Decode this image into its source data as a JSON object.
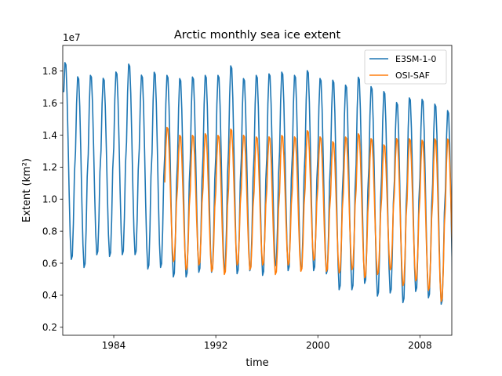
{
  "chart_data": {
    "type": "line",
    "title": "Arctic monthly sea ice extent",
    "xlabel": "time",
    "ylabel": "Extent (km²)",
    "y_offset_label": "1e7",
    "xlim": [
      1980.0,
      2010.5
    ],
    "ylim": [
      1.5,
      19.6
    ],
    "y_ticks": [
      2,
      4,
      6,
      8,
      10,
      12,
      14,
      16,
      18
    ],
    "y_tick_labels": [
      "0.2",
      "0.4",
      "0.6",
      "0.8",
      "1.0",
      "1.2",
      "1.4",
      "1.6",
      "1.8"
    ],
    "x_ticks": [
      1984,
      1992,
      2000,
      2008
    ],
    "x_tick_labels": [
      "1984",
      "1992",
      "2000",
      "2008"
    ],
    "legend_position": "upper-right",
    "grid": false,
    "series": [
      {
        "name": "E3SM-1-0",
        "color": "#1f77b4",
        "start_year": 1980,
        "annual_max": [
          18.7,
          17.8,
          17.9,
          17.7,
          18.1,
          18.6,
          17.9,
          18.1,
          17.9,
          17.7,
          17.8,
          17.9,
          17.9,
          18.5,
          17.7,
          17.9,
          18.0,
          18.1,
          17.9,
          18.2,
          17.7,
          17.6,
          17.3,
          17.8,
          17.2,
          16.9,
          16.2,
          16.5,
          16.4,
          16.1,
          15.7
        ],
        "annual_min": [
          6.1,
          5.6,
          6.4,
          6.3,
          6.4,
          6.4,
          5.5,
          5.6,
          5.0,
          5.0,
          5.3,
          5.3,
          5.4,
          5.2,
          5.4,
          5.1,
          5.7,
          5.4,
          5.4,
          5.4,
          5.2,
          4.2,
          4.2,
          4.6,
          3.8,
          4.0,
          3.4,
          4.1,
          3.7,
          3.3,
          2.4,
          3.5
        ]
      },
      {
        "name": "OSI-SAF",
        "color": "#ff7f0e",
        "start_year": 1988,
        "annual_max": [
          14.6,
          14.1,
          14.1,
          14.2,
          14.1,
          14.5,
          14.1,
          14.0,
          14.0,
          14.1,
          14.0,
          14.4,
          14.0,
          13.7,
          14.0,
          14.2,
          13.9,
          13.5,
          13.9,
          13.9,
          13.8,
          13.9,
          13.9
        ],
        "annual_min": [
          6.0,
          5.5,
          5.8,
          5.4,
          5.2,
          5.8,
          5.5,
          5.8,
          5.2,
          5.8,
          5.4,
          6.1,
          5.4,
          5.3,
          5.5,
          5.0,
          5.2,
          5.5,
          4.5,
          4.8,
          4.2,
          3.5,
          4.7,
          4.1
        ]
      }
    ]
  }
}
